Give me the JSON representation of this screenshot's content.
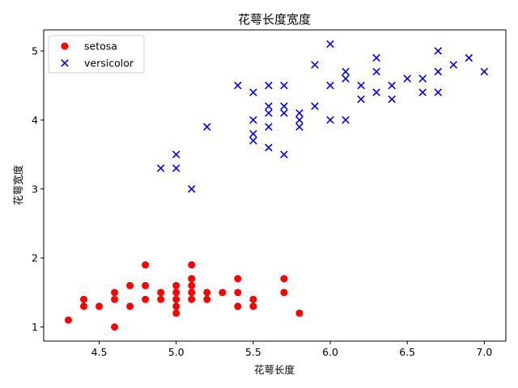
{
  "chart_data": {
    "type": "scatter",
    "title": "花萼长度宽度",
    "xlabel": "花萼长度",
    "ylabel": "花萼宽度",
    "xlim": [
      4.14,
      7.14
    ],
    "ylim": [
      0.795,
      5.305
    ],
    "x_ticks": [
      "4.5",
      "5.0",
      "5.5",
      "6.0",
      "6.5",
      "7.0"
    ],
    "y_ticks": [
      "1",
      "2",
      "3",
      "4",
      "5"
    ],
    "grid": false,
    "legend_position": "top-left",
    "series": [
      {
        "name": "setosa",
        "marker": "circle",
        "color": "#ff0000",
        "points": [
          [
            4.3,
            1.1
          ],
          [
            4.4,
            1.3
          ],
          [
            4.4,
            1.4
          ],
          [
            4.5,
            1.3
          ],
          [
            4.6,
            1.0
          ],
          [
            4.6,
            1.4
          ],
          [
            4.6,
            1.5
          ],
          [
            4.7,
            1.3
          ],
          [
            4.7,
            1.6
          ],
          [
            4.8,
            1.4
          ],
          [
            4.8,
            1.6
          ],
          [
            4.8,
            1.9
          ],
          [
            4.9,
            1.4
          ],
          [
            4.9,
            1.5
          ],
          [
            5.0,
            1.2
          ],
          [
            5.0,
            1.3
          ],
          [
            5.0,
            1.4
          ],
          [
            5.0,
            1.5
          ],
          [
            5.0,
            1.6
          ],
          [
            5.1,
            1.4
          ],
          [
            5.1,
            1.5
          ],
          [
            5.1,
            1.6
          ],
          [
            5.1,
            1.7
          ],
          [
            5.1,
            1.9
          ],
          [
            5.2,
            1.4
          ],
          [
            5.2,
            1.5
          ],
          [
            5.3,
            1.5
          ],
          [
            5.4,
            1.3
          ],
          [
            5.4,
            1.5
          ],
          [
            5.4,
            1.7
          ],
          [
            5.5,
            1.3
          ],
          [
            5.5,
            1.4
          ],
          [
            5.7,
            1.5
          ],
          [
            5.7,
            1.7
          ],
          [
            5.8,
            1.2
          ]
        ]
      },
      {
        "name": "versicolor",
        "marker": "x",
        "color": "#0000ff",
        "points": [
          [
            4.9,
            3.3
          ],
          [
            5.0,
            3.3
          ],
          [
            5.0,
            3.5
          ],
          [
            5.1,
            3.0
          ],
          [
            5.2,
            3.9
          ],
          [
            5.4,
            4.5
          ],
          [
            5.5,
            3.7
          ],
          [
            5.5,
            3.8
          ],
          [
            5.5,
            4.0
          ],
          [
            5.5,
            4.4
          ],
          [
            5.6,
            3.6
          ],
          [
            5.6,
            3.9
          ],
          [
            5.6,
            4.1
          ],
          [
            5.6,
            4.2
          ],
          [
            5.6,
            4.5
          ],
          [
            5.7,
            3.5
          ],
          [
            5.7,
            4.1
          ],
          [
            5.7,
            4.2
          ],
          [
            5.7,
            4.5
          ],
          [
            5.8,
            3.9
          ],
          [
            5.8,
            4.0
          ],
          [
            5.8,
            4.1
          ],
          [
            5.9,
            4.2
          ],
          [
            5.9,
            4.8
          ],
          [
            6.0,
            4.0
          ],
          [
            6.0,
            4.5
          ],
          [
            6.0,
            5.1
          ],
          [
            6.1,
            4.0
          ],
          [
            6.1,
            4.6
          ],
          [
            6.1,
            4.7
          ],
          [
            6.2,
            4.3
          ],
          [
            6.2,
            4.5
          ],
          [
            6.3,
            4.4
          ],
          [
            6.3,
            4.7
          ],
          [
            6.3,
            4.9
          ],
          [
            6.4,
            4.3
          ],
          [
            6.4,
            4.5
          ],
          [
            6.5,
            4.6
          ],
          [
            6.6,
            4.4
          ],
          [
            6.6,
            4.6
          ],
          [
            6.7,
            4.4
          ],
          [
            6.7,
            4.7
          ],
          [
            6.7,
            5.0
          ],
          [
            6.8,
            4.8
          ],
          [
            6.9,
            4.9
          ],
          [
            7.0,
            4.7
          ]
        ]
      }
    ]
  }
}
